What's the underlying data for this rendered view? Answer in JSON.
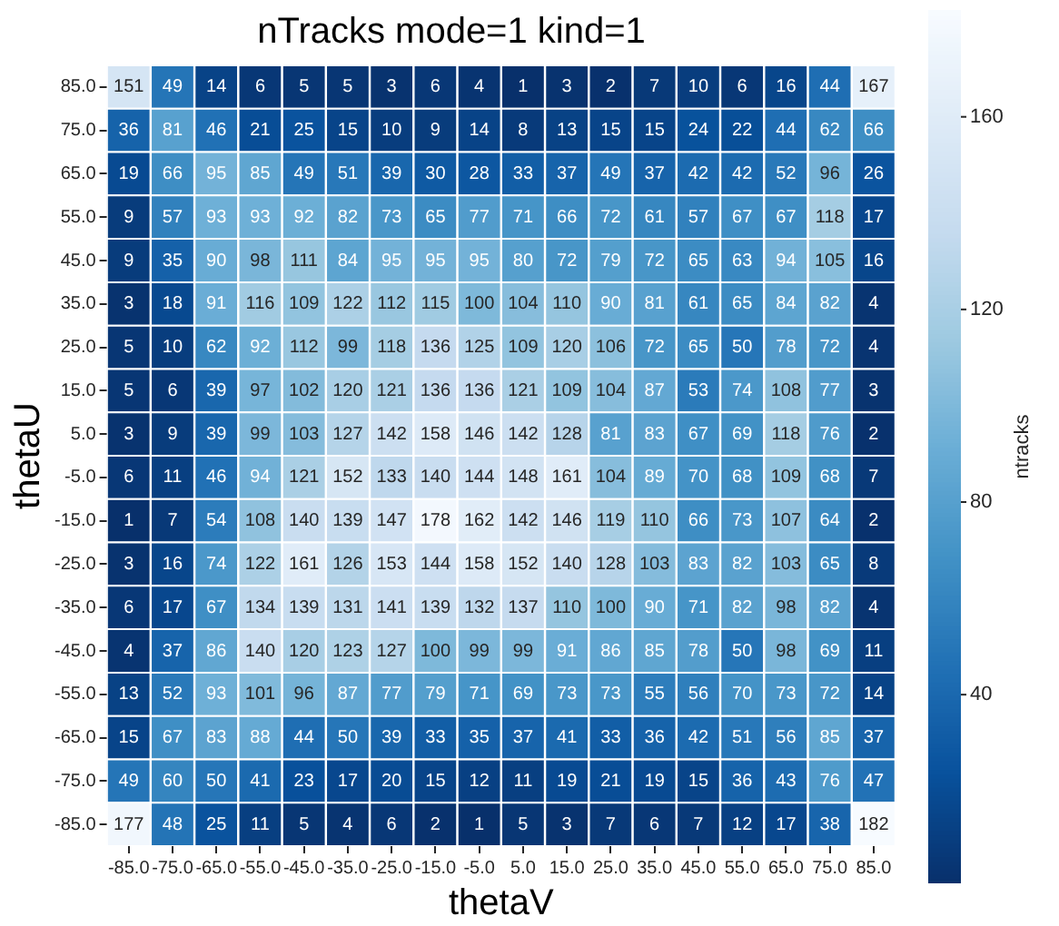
{
  "chart_data": {
    "type": "heatmap",
    "title": "nTracks mode=1 kind=1",
    "xlabel": "thetaV",
    "ylabel": "thetaU",
    "clabel": "ntracks",
    "data_labels": true,
    "categories": [
      "-85.0",
      "-75.0",
      "-65.0",
      "-55.0",
      "-45.0",
      "-35.0",
      "-25.0",
      "-15.0",
      "-5.0",
      "5.0",
      "15.0",
      "25.0",
      "35.0",
      "45.0",
      "55.0",
      "65.0",
      "75.0",
      "85.0"
    ],
    "y_categories": [
      "85.0",
      "75.0",
      "65.0",
      "55.0",
      "45.0",
      "35.0",
      "25.0",
      "15.0",
      "5.0",
      "-5.0",
      "-15.0",
      "-25.0",
      "-35.0",
      "-45.0",
      "-55.0",
      "-65.0",
      "-75.0",
      "-85.0"
    ],
    "cells": [
      [
        151,
        49,
        14,
        6,
        5,
        5,
        3,
        6,
        4,
        1,
        3,
        2,
        7,
        10,
        6,
        16,
        44,
        167
      ],
      [
        36,
        81,
        46,
        21,
        25,
        15,
        10,
        9,
        14,
        8,
        13,
        15,
        15,
        24,
        22,
        44,
        62,
        66
      ],
      [
        19,
        66,
        95,
        85,
        49,
        51,
        39,
        30,
        28,
        33,
        37,
        49,
        37,
        42,
        42,
        52,
        96,
        26
      ],
      [
        9,
        57,
        93,
        93,
        92,
        82,
        73,
        65,
        77,
        71,
        66,
        72,
        61,
        57,
        67,
        67,
        118,
        17
      ],
      [
        9,
        35,
        90,
        98,
        111,
        84,
        95,
        95,
        95,
        80,
        72,
        79,
        72,
        65,
        63,
        94,
        105,
        16
      ],
      [
        3,
        18,
        91,
        116,
        109,
        122,
        112,
        115,
        100,
        104,
        110,
        90,
        81,
        61,
        65,
        84,
        82,
        4
      ],
      [
        5,
        10,
        62,
        92,
        112,
        99,
        118,
        136,
        125,
        109,
        120,
        106,
        72,
        65,
        50,
        78,
        72,
        4
      ],
      [
        5,
        6,
        39,
        97,
        102,
        120,
        121,
        136,
        136,
        121,
        109,
        104,
        87,
        53,
        74,
        108,
        77,
        3
      ],
      [
        3,
        9,
        39,
        99,
        103,
        127,
        142,
        158,
        146,
        142,
        128,
        81,
        83,
        67,
        69,
        118,
        76,
        2
      ],
      [
        6,
        11,
        46,
        94,
        121,
        152,
        133,
        140,
        144,
        148,
        161,
        104,
        89,
        70,
        68,
        109,
        68,
        7
      ],
      [
        1,
        7,
        54,
        108,
        140,
        139,
        147,
        178,
        162,
        142,
        146,
        119,
        110,
        66,
        73,
        107,
        64,
        2
      ],
      [
        3,
        16,
        74,
        122,
        161,
        126,
        153,
        144,
        158,
        152,
        140,
        128,
        103,
        83,
        82,
        103,
        65,
        8
      ],
      [
        6,
        17,
        67,
        134,
        139,
        131,
        141,
        139,
        132,
        137,
        110,
        100,
        90,
        71,
        82,
        98,
        82,
        4
      ],
      [
        4,
        37,
        86,
        140,
        120,
        123,
        127,
        100,
        99,
        99,
        91,
        86,
        85,
        78,
        50,
        98,
        69,
        11
      ],
      [
        13,
        52,
        93,
        101,
        96,
        87,
        77,
        79,
        71,
        69,
        73,
        73,
        55,
        56,
        70,
        73,
        72,
        14
      ],
      [
        15,
        67,
        83,
        88,
        44,
        50,
        39,
        33,
        35,
        37,
        41,
        33,
        36,
        42,
        51,
        56,
        85,
        37
      ],
      [
        49,
        60,
        50,
        41,
        23,
        17,
        20,
        15,
        12,
        11,
        19,
        21,
        19,
        15,
        36,
        43,
        76,
        47
      ],
      [
        177,
        48,
        25,
        11,
        5,
        4,
        6,
        2,
        1,
        5,
        3,
        7,
        6,
        7,
        12,
        17,
        38,
        182
      ]
    ],
    "clim": [
      1,
      182
    ],
    "cticks": [
      40,
      80,
      120,
      160
    ]
  }
}
